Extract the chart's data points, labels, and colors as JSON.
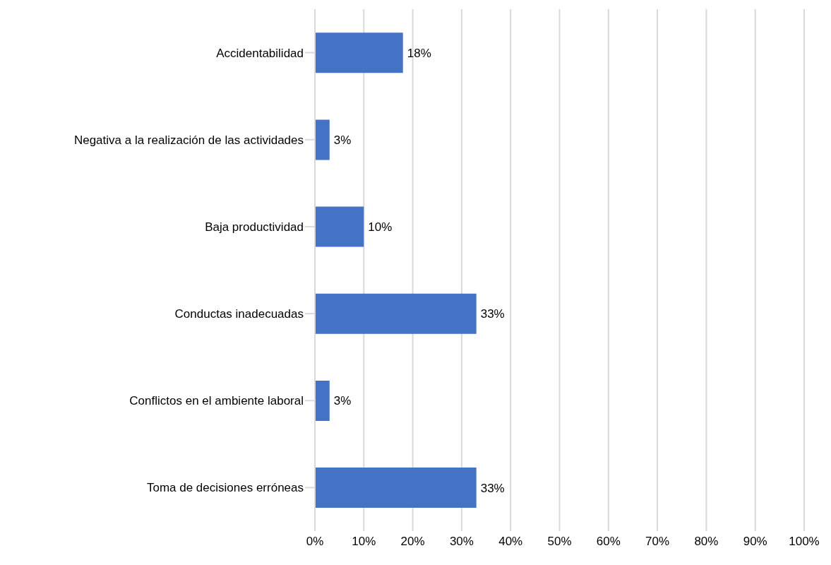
{
  "chart_data": {
    "type": "bar",
    "orientation": "horizontal",
    "categories": [
      "Accidentabilidad",
      "Negativa a la realización de las actividades",
      "Baja productividad",
      "Conductas inadecuadas",
      "Conflictos en el ambiente laboral",
      "Toma de decisiones erróneas"
    ],
    "values": [
      18,
      3,
      10,
      33,
      3,
      33
    ],
    "value_labels": [
      "18%",
      "3%",
      "10%",
      "33%",
      "3%",
      "33%"
    ],
    "color": "#4472c4",
    "xlim": [
      0,
      100
    ],
    "xticks": [
      {
        "value": 0,
        "label": "0%"
      },
      {
        "value": 10,
        "label": "10%"
      },
      {
        "value": 20,
        "label": "20%"
      },
      {
        "value": 30,
        "label": "30%"
      },
      {
        "value": 40,
        "label": "40%"
      },
      {
        "value": 50,
        "label": "50%"
      },
      {
        "value": 60,
        "label": "60%"
      },
      {
        "value": 70,
        "label": "70%"
      },
      {
        "value": 80,
        "label": "80%"
      },
      {
        "value": 90,
        "label": "90%"
      },
      {
        "value": 100,
        "label": "100%"
      }
    ],
    "grid": "x"
  }
}
